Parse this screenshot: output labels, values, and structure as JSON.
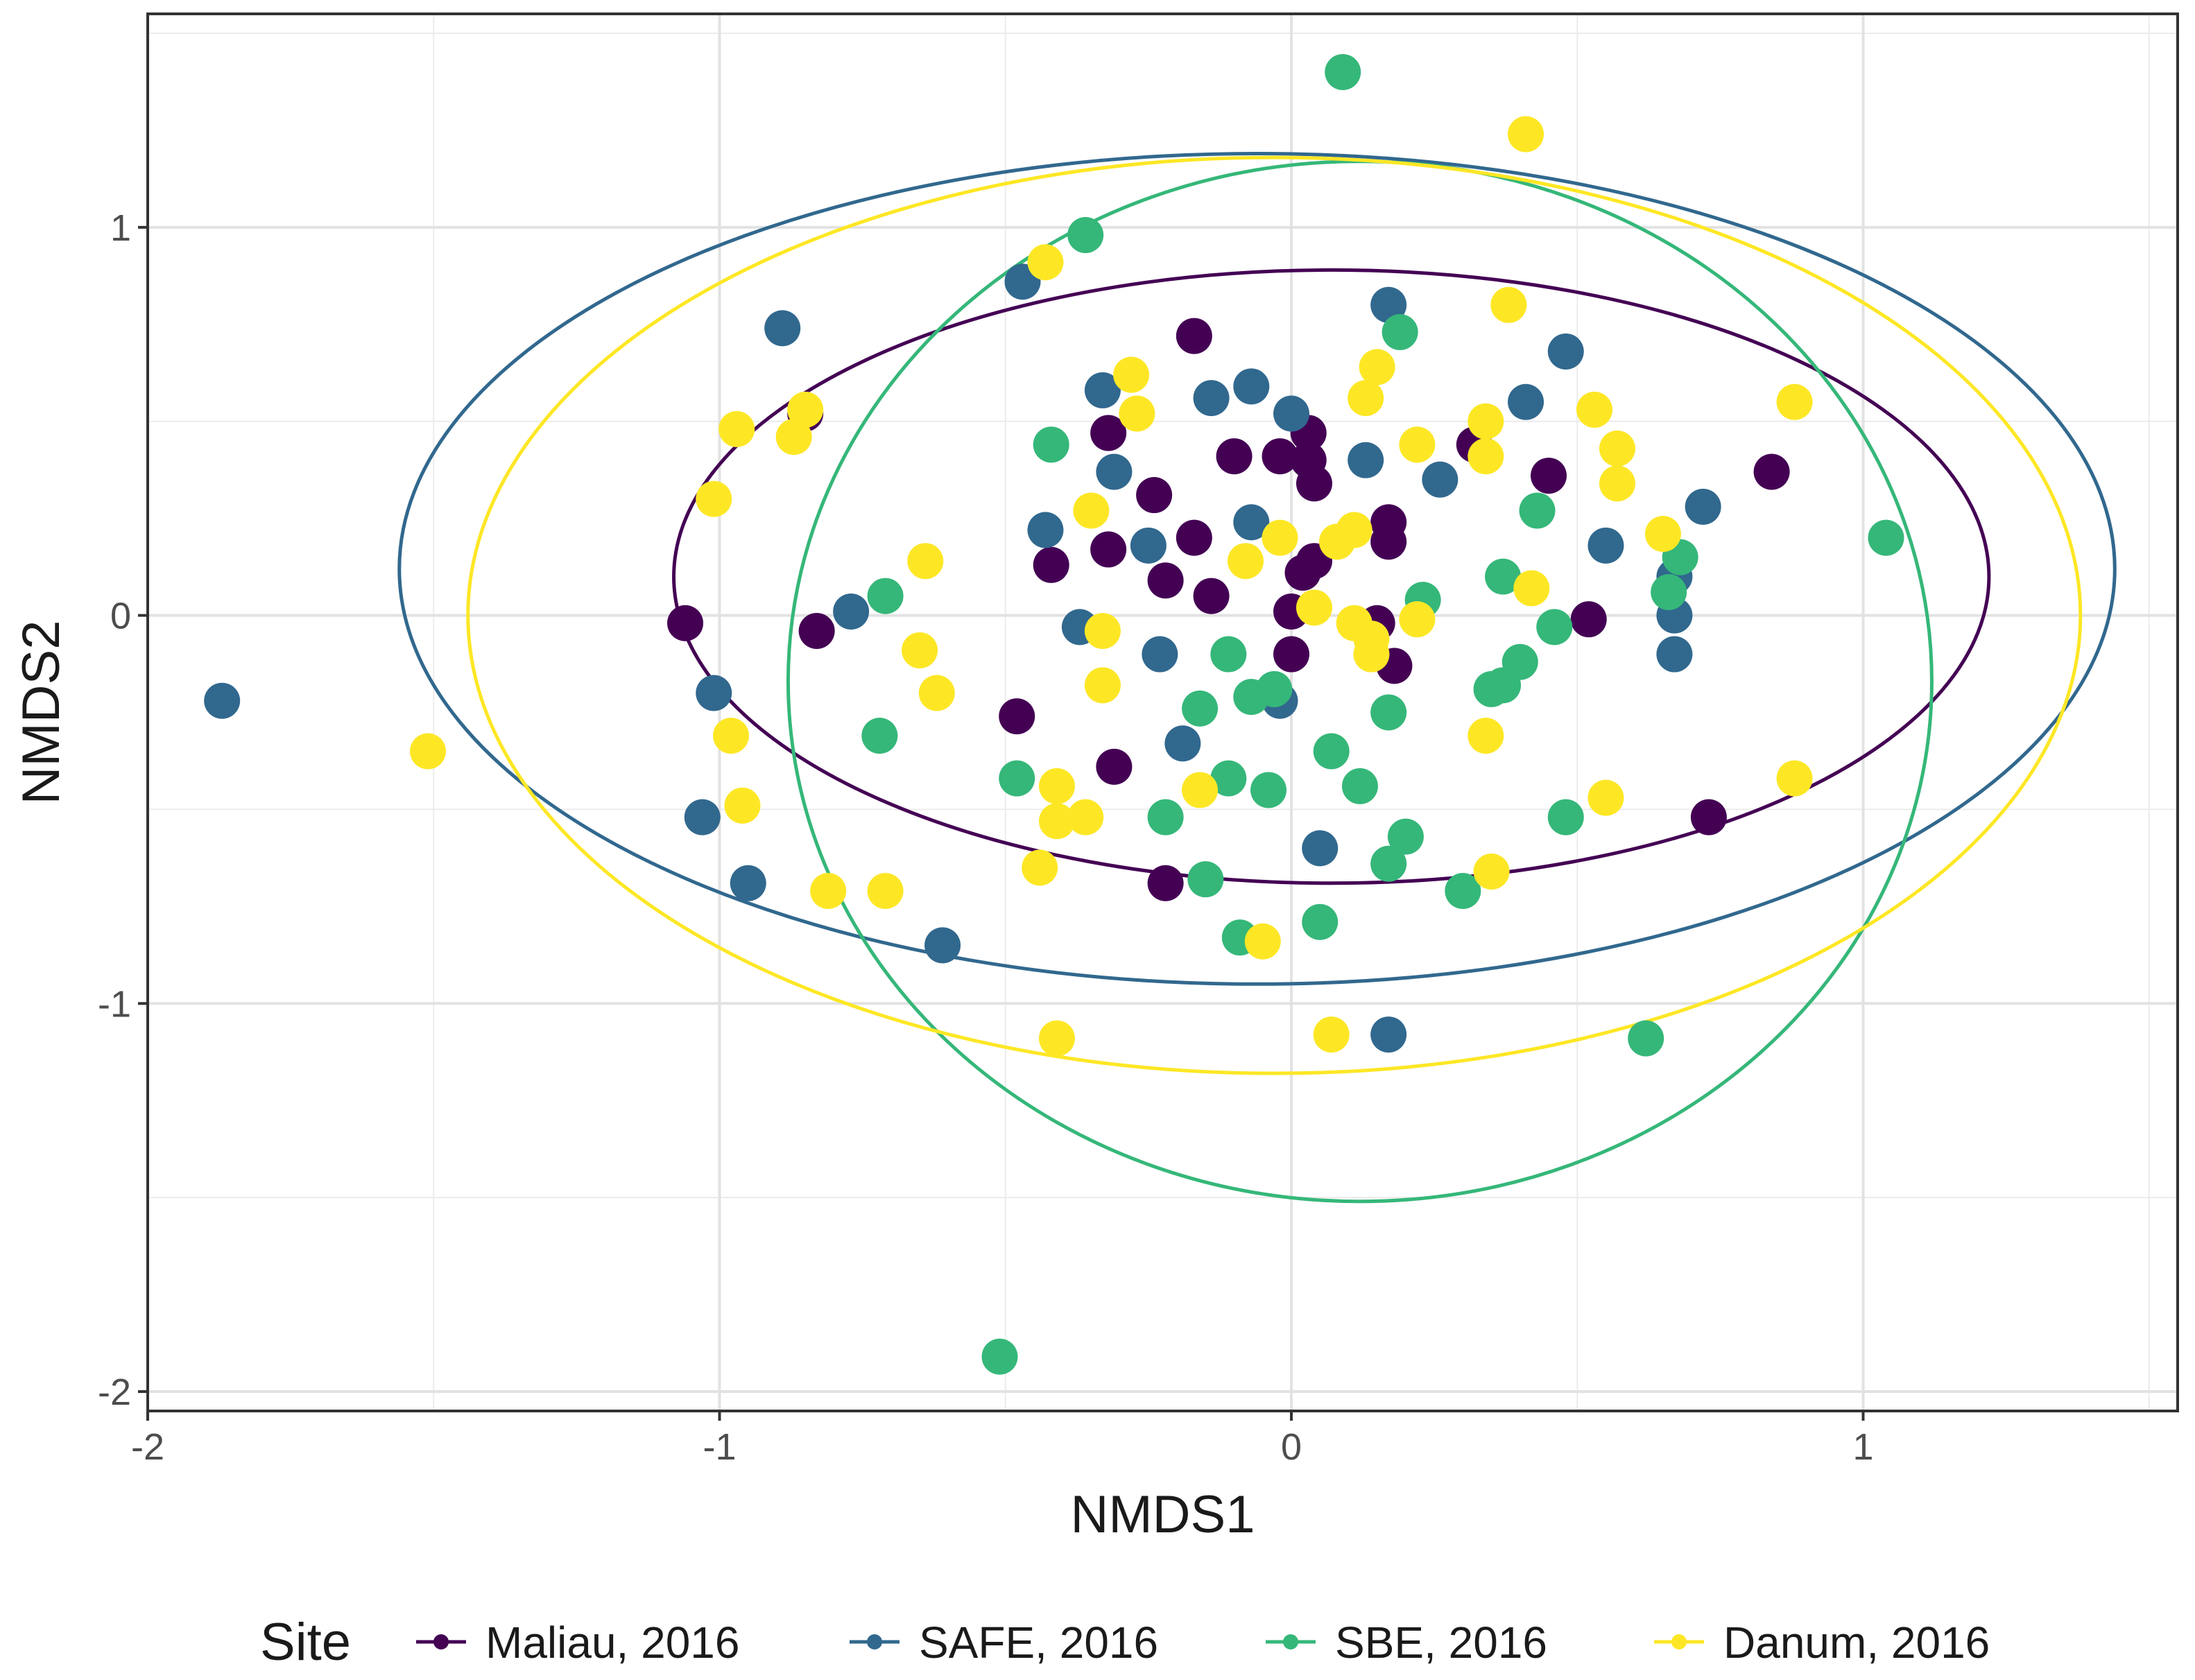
{
  "chart_data": {
    "type": "scatter",
    "title": "",
    "xlabel": "NMDS1",
    "ylabel": "NMDS2",
    "xlim": [
      -2.0,
      1.55
    ],
    "ylim": [
      -2.05,
      1.55
    ],
    "x_ticks": [
      -2,
      -1,
      0,
      1
    ],
    "x_tick_labels": [
      "-2",
      "-1",
      "0",
      "1"
    ],
    "y_ticks": [
      -2,
      -1,
      0,
      1
    ],
    "y_tick_labels": [
      "-2",
      "-1",
      "0",
      "1"
    ],
    "grid": true,
    "legend": {
      "title": "Site",
      "position": "bottom"
    },
    "series": [
      {
        "name": "Maliau, 2016",
        "color": "#440154",
        "points": [
          [
            -1.06,
            -0.02
          ],
          [
            -0.83,
            -0.04
          ],
          [
            -0.85,
            0.52
          ],
          [
            -0.48,
            -0.26
          ],
          [
            -0.42,
            0.13
          ],
          [
            -0.32,
            0.47
          ],
          [
            -0.32,
            0.17
          ],
          [
            -0.31,
            -0.39
          ],
          [
            -0.24,
            0.31
          ],
          [
            -0.22,
            0.09
          ],
          [
            -0.22,
            -0.69
          ],
          [
            -0.17,
            0.72
          ],
          [
            -0.17,
            0.2
          ],
          [
            -0.14,
            0.05
          ],
          [
            -0.1,
            0.41
          ],
          [
            -0.02,
            0.41
          ],
          [
            0.0,
            0.01
          ],
          [
            0.0,
            -0.1
          ],
          [
            0.02,
            0.11
          ],
          [
            0.03,
            0.47
          ],
          [
            0.03,
            0.4
          ],
          [
            0.04,
            0.34
          ],
          [
            0.04,
            0.14
          ],
          [
            0.15,
            -0.02
          ],
          [
            0.17,
            0.24
          ],
          [
            0.17,
            0.19
          ],
          [
            0.18,
            -0.13
          ],
          [
            0.32,
            0.44
          ],
          [
            0.45,
            0.36
          ],
          [
            0.52,
            -0.01
          ],
          [
            0.73,
            -0.52
          ],
          [
            0.84,
            0.37
          ]
        ]
      },
      {
        "name": "SAFE, 2016",
        "color": "#31688e",
        "points": [
          [
            -1.87,
            -0.22
          ],
          [
            -0.89,
            0.74
          ],
          [
            -1.01,
            -0.2
          ],
          [
            -1.03,
            -0.52
          ],
          [
            -0.95,
            -0.69
          ],
          [
            -0.77,
            0.01
          ],
          [
            -0.61,
            -0.85
          ],
          [
            -0.47,
            0.86
          ],
          [
            -0.43,
            0.22
          ],
          [
            -0.37,
            -0.03
          ],
          [
            -0.33,
            0.58
          ],
          [
            -0.31,
            0.37
          ],
          [
            -0.25,
            0.18
          ],
          [
            -0.23,
            -0.1
          ],
          [
            -0.19,
            -0.33
          ],
          [
            -0.14,
            0.56
          ],
          [
            -0.07,
            0.59
          ],
          [
            -0.07,
            0.24
          ],
          [
            -0.02,
            -0.22
          ],
          [
            0.0,
            0.52
          ],
          [
            0.05,
            -0.6
          ],
          [
            0.13,
            0.4
          ],
          [
            0.17,
            0.8
          ],
          [
            0.17,
            -1.08
          ],
          [
            0.26,
            0.35
          ],
          [
            0.41,
            0.55
          ],
          [
            0.48,
            0.68
          ],
          [
            0.55,
            0.18
          ],
          [
            0.67,
            0.1
          ],
          [
            0.67,
            0.0
          ],
          [
            0.67,
            -0.1
          ],
          [
            0.72,
            0.28
          ]
        ]
      },
      {
        "name": "SBE, 2016",
        "color": "#35b779",
        "points": [
          [
            0.09,
            1.4
          ],
          [
            -0.36,
            0.98
          ],
          [
            -0.42,
            0.44
          ],
          [
            -0.71,
            0.05
          ],
          [
            -0.72,
            -0.31
          ],
          [
            -0.48,
            -0.42
          ],
          [
            -0.22,
            -0.52
          ],
          [
            -0.16,
            -0.24
          ],
          [
            -0.15,
            -0.68
          ],
          [
            -0.11,
            -0.1
          ],
          [
            -0.11,
            -0.42
          ],
          [
            -0.09,
            -0.83
          ],
          [
            -0.07,
            -0.21
          ],
          [
            -0.04,
            -0.45
          ],
          [
            -0.03,
            -0.19
          ],
          [
            0.05,
            -0.79
          ],
          [
            0.07,
            -0.35
          ],
          [
            0.12,
            -0.44
          ],
          [
            0.17,
            -0.25
          ],
          [
            0.17,
            -0.64
          ],
          [
            0.19,
            0.73
          ],
          [
            0.2,
            -0.57
          ],
          [
            0.23,
            0.04
          ],
          [
            0.3,
            -0.71
          ],
          [
            0.35,
            -0.19
          ],
          [
            0.37,
            -0.18
          ],
          [
            0.37,
            0.1
          ],
          [
            0.4,
            -0.12
          ],
          [
            0.43,
            0.27
          ],
          [
            0.46,
            -0.03
          ],
          [
            0.48,
            -0.52
          ],
          [
            0.62,
            -1.09
          ],
          [
            0.66,
            0.06
          ],
          [
            0.68,
            0.15
          ],
          [
            1.04,
            0.2
          ],
          [
            -0.51,
            -1.91
          ]
        ]
      },
      {
        "name": "Danum, 2016",
        "color": "#fde725",
        "points": [
          [
            0.41,
            1.24
          ],
          [
            -0.43,
            0.91
          ],
          [
            -1.51,
            -0.35
          ],
          [
            -1.01,
            0.3
          ],
          [
            -0.97,
            0.48
          ],
          [
            -0.85,
            0.53
          ],
          [
            -0.87,
            0.46
          ],
          [
            -0.98,
            -0.31
          ],
          [
            -0.96,
            -0.49
          ],
          [
            -0.81,
            -0.71
          ],
          [
            -0.71,
            -0.71
          ],
          [
            -0.64,
            0.14
          ],
          [
            -0.65,
            -0.09
          ],
          [
            -0.62,
            -0.2
          ],
          [
            -0.44,
            -0.65
          ],
          [
            -0.41,
            -0.44
          ],
          [
            -0.41,
            -0.53
          ],
          [
            -0.36,
            -0.52
          ],
          [
            -0.41,
            -1.09
          ],
          [
            -0.33,
            -0.18
          ],
          [
            -0.33,
            -0.04
          ],
          [
            -0.35,
            0.27
          ],
          [
            -0.28,
            0.62
          ],
          [
            -0.27,
            0.52
          ],
          [
            -0.16,
            -0.45
          ],
          [
            -0.08,
            0.14
          ],
          [
            -0.02,
            0.2
          ],
          [
            0.04,
            0.02
          ],
          [
            0.08,
            0.19
          ],
          [
            0.11,
            0.22
          ],
          [
            0.11,
            -0.02
          ],
          [
            0.13,
            0.56
          ],
          [
            0.14,
            -0.1
          ],
          [
            0.14,
            -0.06
          ],
          [
            0.15,
            0.64
          ],
          [
            0.22,
            -0.01
          ],
          [
            0.22,
            0.44
          ],
          [
            0.34,
            0.5
          ],
          [
            0.34,
            0.41
          ],
          [
            0.34,
            -0.31
          ],
          [
            0.35,
            -0.66
          ],
          [
            0.38,
            0.8
          ],
          [
            0.42,
            0.07
          ],
          [
            0.53,
            0.53
          ],
          [
            0.55,
            -0.47
          ],
          [
            0.57,
            0.43
          ],
          [
            0.57,
            0.34
          ],
          [
            0.65,
            0.21
          ],
          [
            0.88,
            0.55
          ],
          [
            0.88,
            -0.42
          ],
          [
            -0.05,
            -0.84
          ],
          [
            0.07,
            -1.08
          ]
        ]
      }
    ],
    "ellipses": [
      {
        "series": "Maliau, 2016",
        "color": "#440154",
        "center": [
          0.07,
          0.1
        ],
        "rx": 1.15,
        "ry": 0.79
      },
      {
        "series": "SAFE, 2016",
        "color": "#31688e",
        "center": [
          -0.06,
          0.12
        ],
        "rx": 1.5,
        "ry": 1.07
      },
      {
        "series": "SBE, 2016",
        "color": "#35b779",
        "center": [
          0.12,
          -0.17
        ],
        "rx": 1.0,
        "ry": 1.34
      },
      {
        "series": "Danum, 2016",
        "color": "#fde725",
        "center": [
          -0.03,
          0.0
        ],
        "rx": 1.41,
        "ry": 1.18
      }
    ]
  }
}
